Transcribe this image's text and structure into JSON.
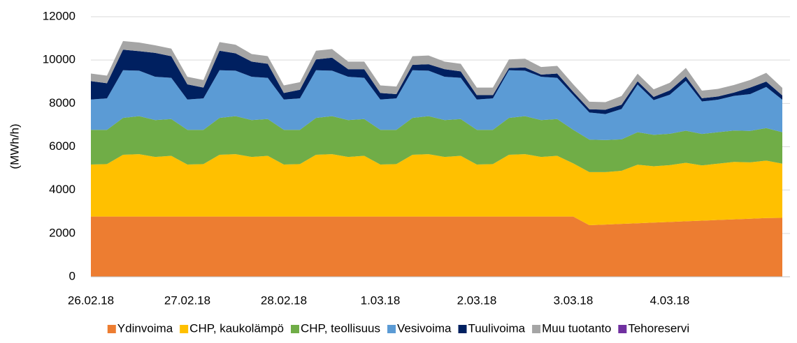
{
  "chart_data": {
    "type": "stacked_area",
    "y_label": "(MWh/h)",
    "categories": [
      "26.02.18",
      null,
      null,
      null,
      null,
      null,
      "27.02.18",
      null,
      null,
      null,
      null,
      null,
      "28.02.18",
      null,
      null,
      null,
      null,
      null,
      "1.03.18",
      null,
      null,
      null,
      null,
      null,
      "2.03.18",
      null,
      null,
      null,
      null,
      null,
      "3.03.18",
      null,
      null,
      null,
      null,
      null,
      "4.03.18",
      null,
      null,
      null,
      null,
      null,
      null,
      null
    ],
    "ylim": [
      0,
      12000
    ],
    "yticks": [
      0,
      2000,
      4000,
      6000,
      8000,
      10000,
      12000
    ],
    "grid": true,
    "legend": "bottom",
    "series": [
      {
        "name": "Ydinvoima",
        "color": "#ED7D31",
        "values": [
          2780,
          2780,
          2780,
          2780,
          2780,
          2780,
          2780,
          2780,
          2780,
          2780,
          2780,
          2780,
          2780,
          2780,
          2780,
          2780,
          2780,
          2780,
          2780,
          2780,
          2780,
          2780,
          2780,
          2780,
          2780,
          2780,
          2780,
          2780,
          2780,
          2780,
          2780,
          2380,
          2410,
          2440,
          2470,
          2500,
          2530,
          2560,
          2590,
          2620,
          2650,
          2680,
          2710,
          2720
        ]
      },
      {
        "name": "CHP, kaukolämpö",
        "color": "#FFC000",
        "values": [
          2400,
          2420,
          2850,
          2880,
          2750,
          2800,
          2400,
          2420,
          2850,
          2880,
          2750,
          2800,
          2400,
          2420,
          2850,
          2880,
          2750,
          2800,
          2400,
          2420,
          2850,
          2880,
          2750,
          2800,
          2400,
          2420,
          2850,
          2880,
          2750,
          2800,
          2450,
          2450,
          2420,
          2450,
          2700,
          2600,
          2620,
          2700,
          2550,
          2600,
          2650,
          2600,
          2650,
          2500
        ]
      },
      {
        "name": "CHP, teollisuus",
        "color": "#70AD47",
        "values": [
          1600,
          1580,
          1700,
          1750,
          1700,
          1700,
          1600,
          1580,
          1700,
          1750,
          1700,
          1700,
          1600,
          1580,
          1700,
          1750,
          1700,
          1700,
          1600,
          1580,
          1700,
          1750,
          1700,
          1700,
          1600,
          1580,
          1700,
          1750,
          1700,
          1700,
          1550,
          1500,
          1480,
          1450,
          1500,
          1450,
          1450,
          1480,
          1450,
          1450,
          1450,
          1450,
          1500,
          1450
        ]
      },
      {
        "name": "Vesivoima",
        "color": "#5B9BD5",
        "values": [
          1400,
          1450,
          2200,
          2100,
          2000,
          1900,
          1400,
          1450,
          2200,
          2100,
          2000,
          1900,
          1400,
          1450,
          2200,
          2100,
          2000,
          1900,
          1400,
          1450,
          2200,
          2100,
          2000,
          1900,
          1400,
          1450,
          2200,
          2100,
          2000,
          1900,
          1600,
          1250,
          1200,
          1400,
          2200,
          1600,
          1800,
          2300,
          1500,
          1500,
          1600,
          1700,
          1900,
          1500
        ]
      },
      {
        "name": "Tuulivoima",
        "color": "#002060",
        "values": [
          850,
          700,
          950,
          900,
          1100,
          1000,
          700,
          500,
          900,
          800,
          700,
          650,
          300,
          400,
          500,
          600,
          350,
          400,
          300,
          200,
          250,
          300,
          350,
          300,
          200,
          150,
          100,
          150,
          100,
          200,
          150,
          150,
          200,
          200,
          150,
          150,
          200,
          200,
          150,
          150,
          150,
          300,
          250,
          200
        ]
      },
      {
        "name": "Muu tuotanto",
        "color": "#A5A5A5",
        "values": [
          350,
          350,
          400,
          400,
          350,
          350,
          350,
          350,
          400,
          400,
          350,
          350,
          350,
          350,
          400,
          400,
          350,
          350,
          350,
          350,
          400,
          400,
          350,
          350,
          350,
          350,
          400,
          400,
          350,
          350,
          350,
          350,
          350,
          400,
          350,
          350,
          350,
          400,
          350,
          350,
          350,
          350,
          400,
          350
        ]
      },
      {
        "name": "Tehoreservi",
        "color": "#7030A0",
        "values": [
          0,
          0,
          0,
          0,
          0,
          0,
          0,
          0,
          0,
          0,
          0,
          0,
          0,
          0,
          0,
          0,
          0,
          0,
          0,
          0,
          0,
          0,
          0,
          0,
          0,
          0,
          0,
          0,
          0,
          0,
          0,
          0,
          0,
          0,
          0,
          0,
          0,
          0,
          0,
          0,
          0,
          0,
          0,
          0
        ]
      }
    ]
  }
}
